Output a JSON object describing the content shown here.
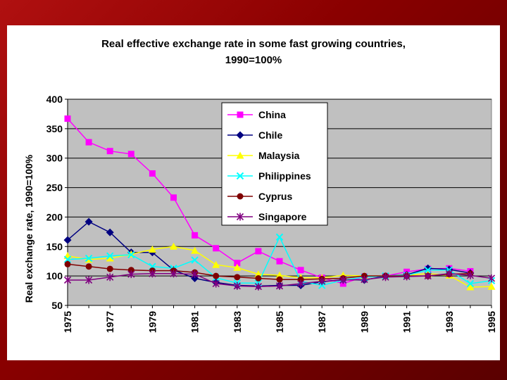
{
  "chart_data": {
    "type": "line",
    "title_line1": "Real effective exchange rate in some fast growing countries,",
    "title_line2": "1990=100%",
    "ylabel": "Real exchange rate, 1990=100%",
    "xlabel": "",
    "ylim": [
      50,
      400
    ],
    "yticks": [
      50,
      100,
      150,
      200,
      250,
      300,
      350,
      400
    ],
    "xlim": [
      1975,
      1995
    ],
    "xticks": [
      "1975",
      "1977",
      "1979",
      "1981",
      "1983",
      "1985",
      "1987",
      "1989",
      "1991",
      "1993",
      "1995"
    ],
    "legend_position": "top-right",
    "plot_background": "#c0c0c0",
    "series": [
      {
        "name": "China",
        "color": "#ff00ff",
        "marker": "square",
        "x": [
          1975,
          1976,
          1977,
          1978,
          1979,
          1980,
          1981,
          1982,
          1983,
          1984,
          1985,
          1986,
          1987,
          1988,
          1989,
          1990,
          1991,
          1992,
          1993,
          1994
        ],
        "values": [
          367,
          327,
          312,
          307,
          274,
          233,
          169,
          147,
          122,
          142,
          125,
          110,
          97,
          87,
          99,
          100,
          107,
          112,
          113,
          108
        ]
      },
      {
        "name": "Chile",
        "color": "#000080",
        "marker": "diamond",
        "x": [
          1975,
          1976,
          1977,
          1978,
          1979,
          1980,
          1981,
          1982,
          1983,
          1984,
          1985,
          1986,
          1987,
          1988,
          1989,
          1990,
          1991,
          1992,
          1993,
          1994
        ],
        "values": [
          161,
          192,
          174,
          140,
          140,
          110,
          96,
          89,
          84,
          83,
          84,
          84,
          90,
          94,
          93,
          100,
          102,
          113,
          111,
          105
        ]
      },
      {
        "name": "Malaysia",
        "color": "#ffff00",
        "marker": "triangle",
        "x": [
          1975,
          1976,
          1977,
          1978,
          1979,
          1980,
          1981,
          1982,
          1983,
          1984,
          1985,
          1986,
          1987,
          1988,
          1989,
          1990,
          1991,
          1992,
          1993,
          1994,
          1995
        ],
        "values": [
          134,
          128,
          130,
          137,
          145,
          150,
          143,
          119,
          114,
          103,
          101,
          97,
          97,
          101,
          100,
          100,
          101,
          104,
          101,
          81,
          82
        ]
      },
      {
        "name": "Philippines",
        "color": "#00ffff",
        "marker": "x",
        "x": [
          1975,
          1976,
          1977,
          1978,
          1979,
          1980,
          1981,
          1982,
          1983,
          1984,
          1985,
          1986,
          1987,
          1988,
          1989,
          1990,
          1991,
          1992,
          1993,
          1994,
          1995
        ],
        "values": [
          128,
          130,
          134,
          136,
          116,
          113,
          127,
          97,
          88,
          88,
          166,
          91,
          84,
          93,
          98,
          100,
          101,
          110,
          110,
          87,
          92
        ]
      },
      {
        "name": "Cyprus",
        "color": "#800000",
        "marker": "circle",
        "x": [
          1975,
          1976,
          1977,
          1978,
          1979,
          1980,
          1981,
          1982,
          1983,
          1984,
          1985,
          1986,
          1987,
          1988,
          1989,
          1990,
          1991,
          1992,
          1993,
          1994
        ],
        "values": [
          120,
          116,
          112,
          110,
          109,
          109,
          106,
          100,
          98,
          96,
          94,
          94,
          95,
          96,
          100,
          100,
          100,
          100,
          103,
          104
        ]
      },
      {
        "name": "Singapore",
        "color": "#800080",
        "marker": "asterisk",
        "x": [
          1975,
          1976,
          1977,
          1978,
          1979,
          1980,
          1981,
          1982,
          1983,
          1984,
          1985,
          1986,
          1987,
          1988,
          1989,
          1990,
          1991,
          1992,
          1993,
          1994,
          1995
        ],
        "values": [
          93,
          93,
          98,
          103,
          104,
          104,
          103,
          87,
          83,
          82,
          83,
          87,
          91,
          93,
          94,
          98,
          99,
          100,
          104,
          101,
          96
        ]
      }
    ]
  }
}
